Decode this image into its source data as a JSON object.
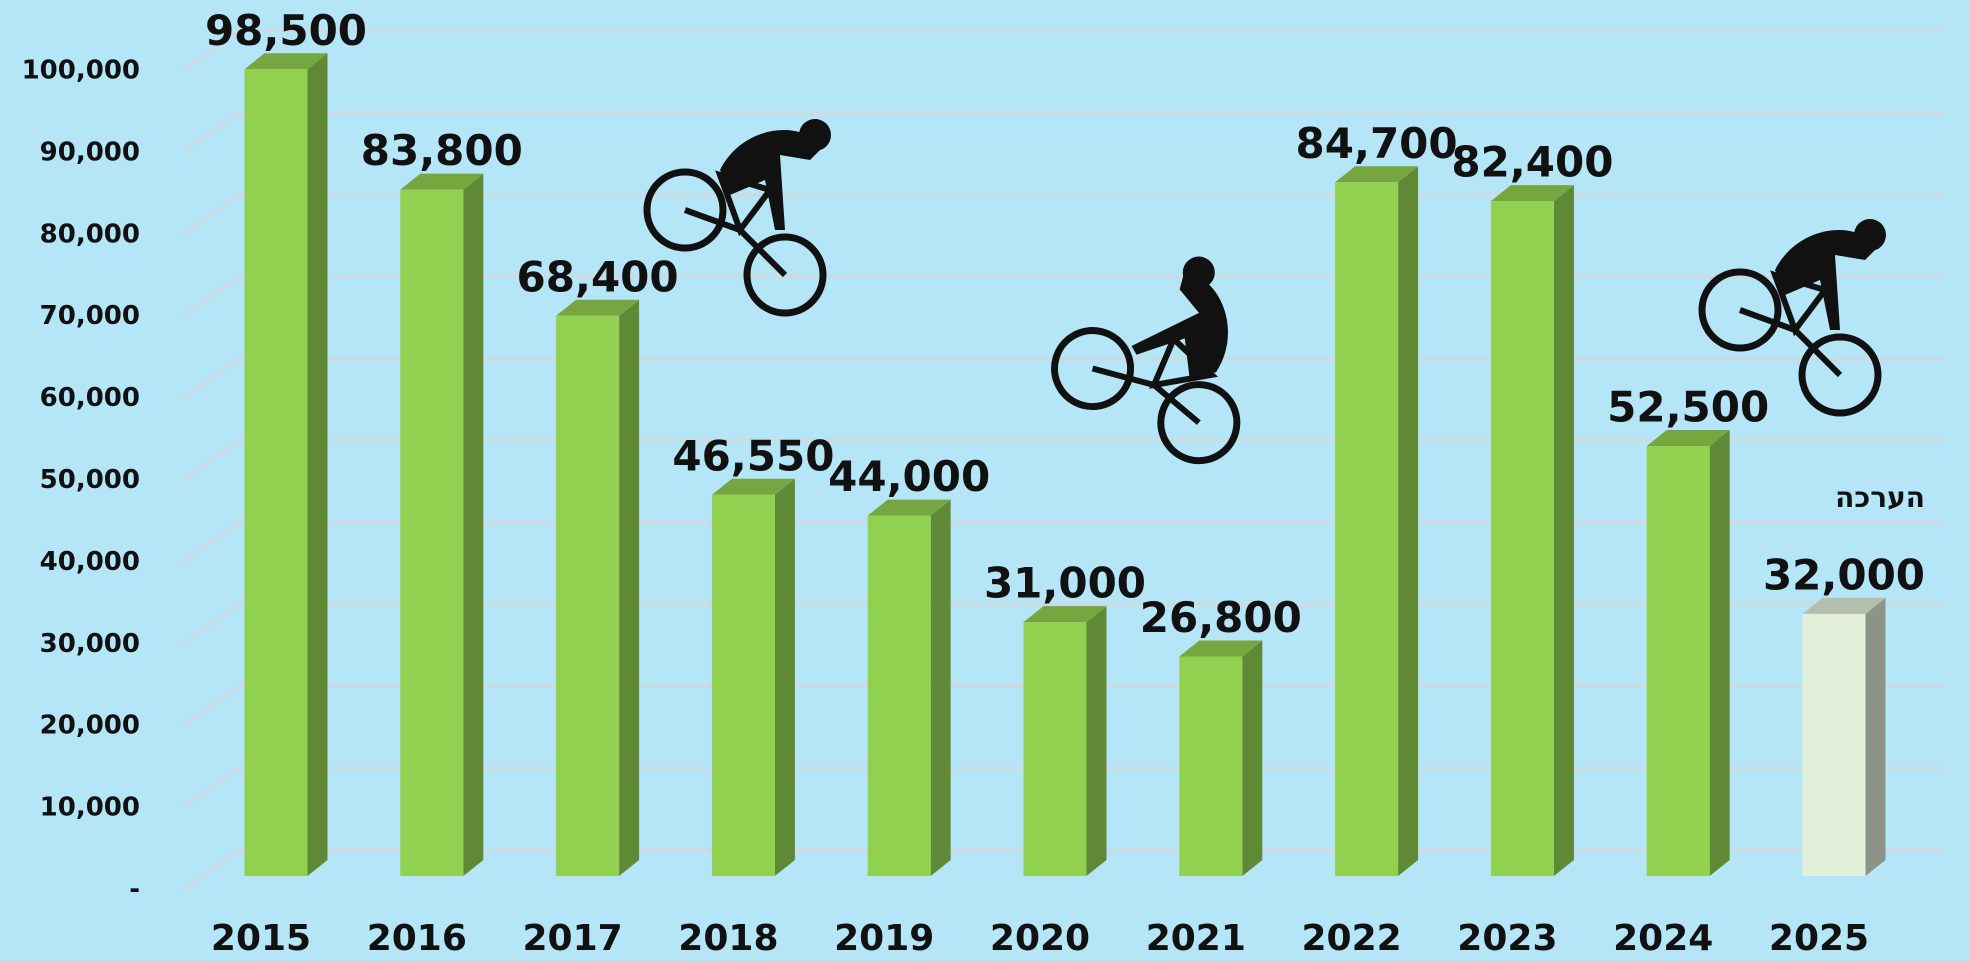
{
  "chart_data": {
    "type": "bar3d",
    "categories": [
      "2015",
      "2016",
      "2017",
      "2018",
      "2019",
      "2020",
      "2021",
      "2022",
      "2023",
      "2024",
      "2025"
    ],
    "values": [
      98500,
      83800,
      68400,
      46550,
      44000,
      31000,
      26800,
      84700,
      82400,
      52500,
      32000
    ],
    "value_labels": [
      "98,500",
      "83,800",
      "68,400",
      "46,550",
      "44,000",
      "31,000",
      "26,800",
      "84,700",
      "82,400",
      "52,500",
      "32,000"
    ],
    "colors": [
      "#92d050",
      "#92d050",
      "#92d050",
      "#92d050",
      "#92d050",
      "#92d050",
      "#92d050",
      "#92d050",
      "#92d050",
      "#92d050",
      "#e2efd9"
    ],
    "ylim": [
      0,
      100000
    ],
    "yticks": [
      {
        "value": 0,
        "label": "-"
      },
      {
        "value": 10000,
        "label": "10,000"
      },
      {
        "value": 20000,
        "label": "20,000"
      },
      {
        "value": 30000,
        "label": "30,000"
      },
      {
        "value": 40000,
        "label": "40,000"
      },
      {
        "value": 50000,
        "label": "50,000"
      },
      {
        "value": 60000,
        "label": "60,000"
      },
      {
        "value": 70000,
        "label": "70,000"
      },
      {
        "value": 80000,
        "label": "80,000"
      },
      {
        "value": 90000,
        "label": "90,000"
      },
      {
        "value": 100000,
        "label": "100,000"
      }
    ],
    "grid": true,
    "annotation": "הערכה"
  }
}
